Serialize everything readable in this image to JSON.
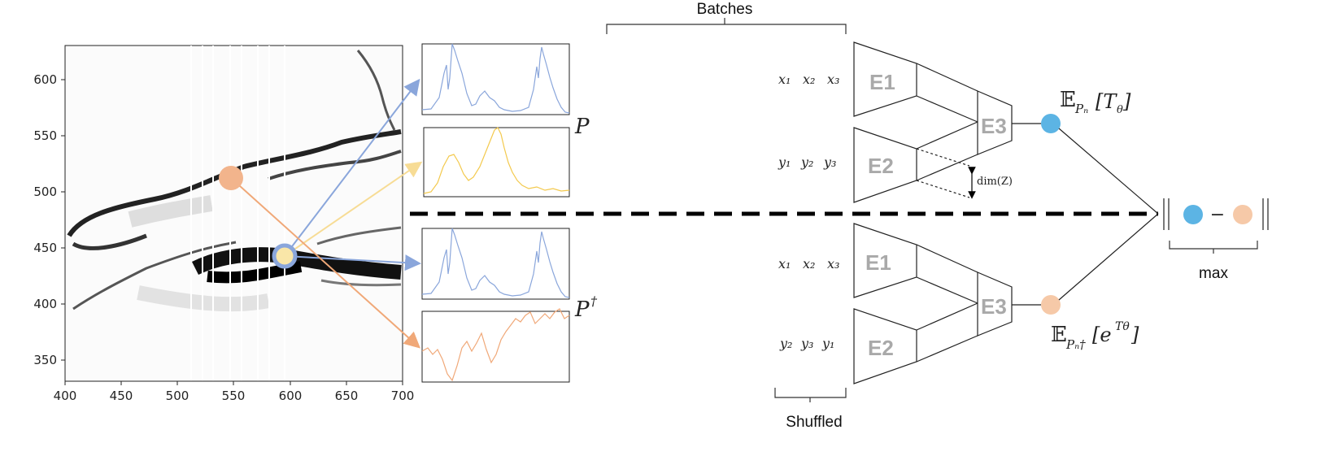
{
  "plot": {
    "x_ticks": [
      "400",
      "450",
      "500",
      "550",
      "600",
      "650",
      "700"
    ],
    "y_ticks": [
      "600",
      "550",
      "500",
      "450",
      "400",
      "350"
    ]
  },
  "labels": {
    "p": "P",
    "p_dagger": "P",
    "dagger": "†",
    "batches": "Batches",
    "shuffled": "Shuffled",
    "max": "max",
    "dim": "dim(Z)",
    "minus": "−"
  },
  "batches": {
    "top": {
      "x": [
        "x₁",
        "x₂",
        "x₃"
      ],
      "y": [
        "y₁",
        "y₂",
        "y₃"
      ]
    },
    "bottom": {
      "x": [
        "x₁",
        "x₂",
        "x₃"
      ],
      "y": [
        "y₂",
        "y₃",
        "y₁"
      ]
    }
  },
  "encoders": {
    "e1": "E1",
    "e2": "E2",
    "e3": "E3"
  },
  "expectations": {
    "top": {
      "E": "𝔼",
      "sub": "Pₙ",
      "arg": "[T",
      "theta": "θ",
      "close": "]"
    },
    "bottom": {
      "E": "𝔼",
      "sub": "Pₙ†",
      "arg": "[e",
      "sup": "Tθ",
      "close": "]"
    }
  },
  "colors": {
    "blue": "#5cb4e4",
    "peach": "#f6c9a8",
    "orange_dot": "#f2b48c",
    "line_blue": "#8aa6db",
    "line_yellow": "#f7dc95",
    "line_orange": "#f0a878"
  }
}
